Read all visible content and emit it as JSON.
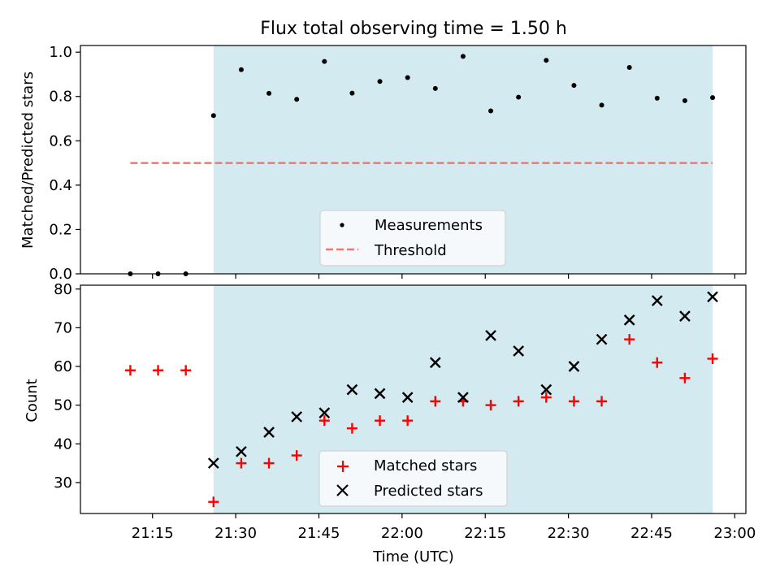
{
  "chart_data": [
    {
      "type": "scatter",
      "title": "Flux total observing time = 1.50 h",
      "xlabel": "",
      "ylabel": "Matched/Predicted stars",
      "ylim": [
        0.0,
        1.03
      ],
      "yticks": [
        0.0,
        0.2,
        0.4,
        0.6,
        0.8,
        1.0
      ],
      "ytick_labels": [
        "0.0",
        "0.2",
        "0.4",
        "0.6",
        "0.8",
        "1.0"
      ],
      "shaded_range": [
        "21:26",
        "22:56"
      ],
      "shade_color": "#d3eaf0",
      "series": [
        {
          "name": "Measurements",
          "marker": "dot",
          "color": "#000000",
          "x": [
            "21:11",
            "21:16",
            "21:21",
            "21:26",
            "21:31",
            "21:36",
            "21:41",
            "21:46",
            "21:51",
            "21:56",
            "22:01",
            "22:06",
            "22:11",
            "22:16",
            "22:21",
            "22:26",
            "22:31",
            "22:36",
            "22:41",
            "22:46",
            "22:51",
            "22:56"
          ],
          "y": [
            0.0,
            0.0,
            0.0,
            0.714,
            0.921,
            0.814,
            0.787,
            0.958,
            0.815,
            0.868,
            0.885,
            0.836,
            0.981,
            0.735,
            0.797,
            0.963,
            0.85,
            0.761,
            0.931,
            0.792,
            0.781,
            0.795
          ]
        },
        {
          "name": "Threshold",
          "style": "dashed",
          "color": "#ff7070",
          "x": [
            "21:11",
            "22:56"
          ],
          "y": [
            0.5,
            0.5
          ]
        }
      ],
      "legend": "lower-center"
    },
    {
      "type": "scatter",
      "title": "",
      "xlabel": "Time (UTC)",
      "ylabel": "Count",
      "ylim": [
        22,
        81
      ],
      "yticks": [
        30,
        40,
        50,
        60,
        70,
        80
      ],
      "ytick_labels": [
        "30",
        "40",
        "50",
        "60",
        "70",
        "80"
      ],
      "xlim": [
        "21:02",
        "23:02"
      ],
      "xticks": [
        "21:15",
        "21:30",
        "21:45",
        "22:00",
        "22:15",
        "22:30",
        "22:45",
        "23:00"
      ],
      "shaded_range": [
        "21:26",
        "22:56"
      ],
      "shade_color": "#d3eaf0",
      "series": [
        {
          "name": "Matched stars",
          "marker": "plus",
          "color": "#ff0000",
          "x": [
            "21:11",
            "21:16",
            "21:21",
            "21:26",
            "21:31",
            "21:36",
            "21:41",
            "21:46",
            "21:51",
            "21:56",
            "22:01",
            "22:06",
            "22:11",
            "22:16",
            "22:21",
            "22:26",
            "22:31",
            "22:36",
            "22:41",
            "22:46",
            "22:51",
            "22:56"
          ],
          "y": [
            59,
            59,
            59,
            25,
            35,
            35,
            37,
            46,
            44,
            46,
            46,
            51,
            51,
            50,
            51,
            52,
            51,
            51,
            67,
            61,
            57,
            62
          ]
        },
        {
          "name": "Predicted stars",
          "marker": "x",
          "color": "#000000",
          "x": [
            "21:26",
            "21:31",
            "21:36",
            "21:41",
            "21:46",
            "21:51",
            "21:56",
            "22:01",
            "22:06",
            "22:11",
            "22:16",
            "22:21",
            "22:26",
            "22:31",
            "22:36",
            "22:41",
            "22:46",
            "22:51",
            "22:56"
          ],
          "y": [
            35,
            38,
            43,
            47,
            48,
            54,
            53,
            52,
            61,
            52,
            68,
            64,
            54,
            60,
            67,
            72,
            77,
            73,
            78
          ]
        }
      ],
      "legend": "lower-center"
    }
  ]
}
